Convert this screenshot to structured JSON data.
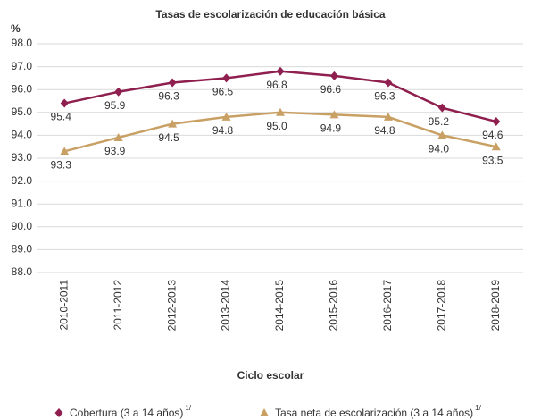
{
  "chart_data": {
    "type": "line",
    "title": "Tasas de escolarización de educación básica",
    "y_label": "%",
    "x_label": "Ciclo escolar",
    "categories": [
      "2010-2011",
      "2011-2012",
      "2012-2013",
      "2013-2014",
      "2014-2015",
      "2015-2016",
      "2016-2017",
      "2017-2018",
      "2018-2019"
    ],
    "series": [
      {
        "name": "Cobertura (3 a 14 años)",
        "footnote": "1/",
        "color": "#8e1f4f",
        "marker": "diamond",
        "values": [
          95.4,
          95.9,
          96.3,
          96.5,
          96.8,
          96.6,
          96.3,
          95.2,
          94.6
        ],
        "value_labels": [
          "95.4",
          "95.9",
          "96.3",
          "96.5",
          "96.8",
          "96.6",
          "96.3",
          "95.2",
          "94.6"
        ]
      },
      {
        "name": "Tasa neta de escolarización (3 a 14 años)",
        "footnote": "1/",
        "color": "#c9a063",
        "marker": "triangle",
        "values": [
          93.3,
          93.9,
          94.5,
          94.8,
          95,
          94.9,
          94.8,
          94,
          93.5
        ],
        "value_labels": [
          "93.3",
          "93.9",
          "94.5",
          "94.8",
          "95.0",
          "94.9",
          "94.8",
          "94.0",
          "93.5"
        ]
      }
    ],
    "ylim": [
      88,
      98
    ],
    "yticks": [
      {
        "value": 88,
        "label": "88.0"
      },
      {
        "value": 89,
        "label": "89.0"
      },
      {
        "value": 90,
        "label": "90.0"
      },
      {
        "value": 91,
        "label": "91.0"
      },
      {
        "value": 92,
        "label": "92.0"
      },
      {
        "value": 93,
        "label": "93.0"
      },
      {
        "value": 94,
        "label": "94.0"
      },
      {
        "value": 95,
        "label": "95.0"
      },
      {
        "value": 96,
        "label": "96.0"
      },
      {
        "value": 97,
        "label": "97.0"
      },
      {
        "value": 98,
        "label": "98.0"
      }
    ],
    "grid": true,
    "legend": "bottom"
  }
}
